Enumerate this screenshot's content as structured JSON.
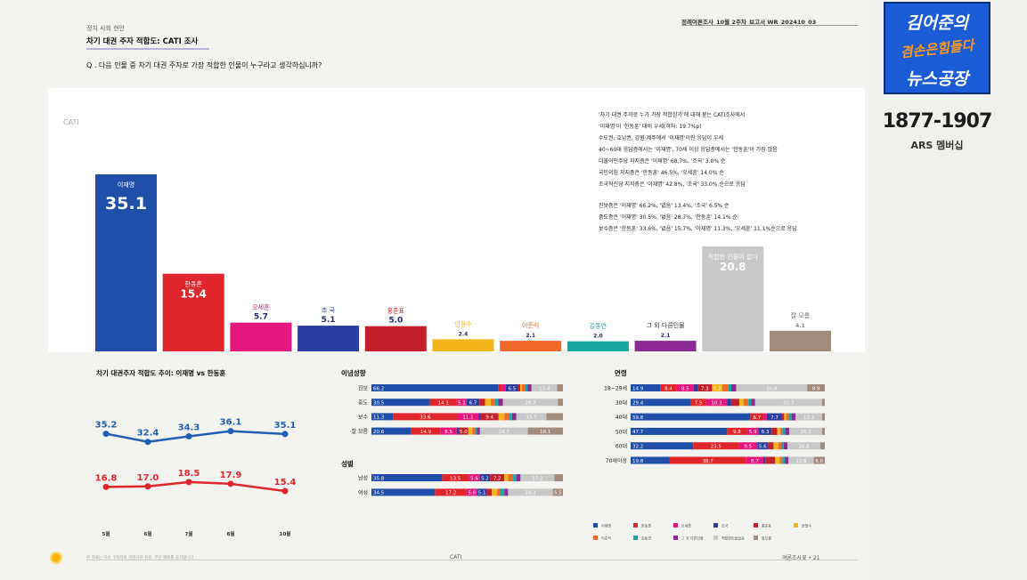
{
  "header": {
    "category": "정치 사회 현안",
    "title": "차기 대권 주자 적합도: CATI 조사",
    "report": "정례여론조사_10월 2주차_보고서   WR_202410_03",
    "question": "Q . 다음 인물 중 차기 대권 주자로 가장 적합한 인물이 누구라고 생각하십니까?"
  },
  "main_chart_tag": "CATI",
  "description": [
    "'차기 대권 주자로 누가 가장 적합한가'에 대해 묻는 CATI조사에서",
    "'이재명'이 '한동훈' 대비 우세(격차: 19.7%p)",
    "수도권, 호남권, 강원·제주에서 '이재명'이란 응답이 우세",
    "40~60대 응답층에서는 '이재명', 70세 이상 응답층에서는 '한동훈'이 가장 많음",
    "더불어민주당 지지층은 '이재명' 68.7%, '조국' 3.0% 순",
    "국민의힘 지지층은 '한동훈' 46.5%, '오세훈' 14.0% 순",
    "조국혁신당 지지층은 '이재명' 42.8%, '조국' 33.0% 순으로 응답",
    "",
    "진보층은 '이재명' 66.2%, '없음' 13.4%, '조국' 6.5% 순",
    "중도층은 '이재명' 30.5%, '없음' 28.7%, '한동훈' 14.1% 순",
    "보수층은 '한동훈' 33.6%, '없음' 15.7%, '이재명' 11.3%, '오세훈' 11.1%순으로 응답"
  ],
  "chart_data": [
    {
      "type": "bar",
      "categories": [
        "이재명",
        "한동훈",
        "오세훈",
        "조 국",
        "홍준표",
        "안철수",
        "이준석",
        "김동연",
        "그 외 다른인물",
        "적합한 인물이 없다",
        "잘 모름"
      ],
      "values": [
        35.1,
        15.4,
        5.7,
        5.1,
        5.0,
        2.4,
        2.1,
        2.0,
        2.1,
        20.8,
        4.1
      ],
      "colors": [
        "#1f4fa8",
        "#e0262b",
        "#e5177f",
        "#2c3da0",
        "#c4202b",
        "#f3b51b",
        "#f26a2a",
        "#17a6a0",
        "#8b2a91",
        "#c8c8c8",
        "#a28b7b"
      ],
      "ylim": [
        0,
        40
      ]
    },
    {
      "type": "line",
      "title": "차기 대권주자 적합도 추이: 이재명 vs 한동훈",
      "categories": [
        "5월",
        "6월",
        "7월",
        "8월",
        "10월"
      ],
      "series": [
        {
          "name": "이재명",
          "values": [
            35.2,
            32.4,
            34.3,
            36.1,
            35.1
          ],
          "color": "#1f5fb5"
        },
        {
          "name": "한동훈",
          "values": [
            16.8,
            17.0,
            18.5,
            17.9,
            15.4
          ],
          "color": "#e0262b"
        }
      ],
      "ylim": [
        0,
        45
      ]
    },
    {
      "type": "stacked-bar",
      "title": "이념성향",
      "rows": [
        {
          "label": "진보",
          "values": [
            66.2,
            2.0,
            2.0,
            6.5,
            1.0,
            0.8,
            1.6,
            1.5,
            2.0,
            13.4,
            3.0
          ],
          "labels": [
            "66.2",
            "",
            "",
            "6.5",
            "",
            "",
            "",
            "",
            "",
            "13.4",
            ""
          ]
        },
        {
          "label": "중도",
          "values": [
            30.5,
            14.1,
            5.1,
            6.7,
            2.9,
            3.0,
            2.0,
            2.0,
            2.4,
            28.7,
            2.6
          ],
          "labels": [
            "30.5",
            "14.1",
            "5.1",
            "6.7",
            "",
            "",
            "",
            "",
            "",
            "28.7",
            ""
          ]
        },
        {
          "label": "보수",
          "values": [
            11.3,
            33.6,
            11.1,
            1.0,
            9.4,
            3.0,
            2.5,
            1.5,
            2.3,
            15.7,
            8.6
          ],
          "labels": [
            "11.3",
            "33.6",
            "11.1",
            "",
            "9.4",
            "",
            "",
            "",
            "",
            "15.7",
            ""
          ]
        },
        {
          "label": "잘 모름",
          "values": [
            20.6,
            14.9,
            8.5,
            1.0,
            5.0,
            2.0,
            1.5,
            1.0,
            1.5,
            24.7,
            18.1
          ],
          "labels": [
            "20.6",
            "14.9",
            "8.5",
            "",
            "5.0",
            "",
            "",
            "",
            "",
            "24.7",
            "18.1"
          ]
        }
      ]
    },
    {
      "type": "stacked-bar",
      "title": "성별",
      "rows": [
        {
          "label": "남성",
          "values": [
            35.8,
            13.5,
            5.6,
            5.2,
            7.2,
            2.0,
            2.5,
            1.7,
            2.0,
            17.2,
            4.3
          ],
          "labels": [
            "35.8",
            "13.5",
            "5.6",
            "5.2",
            "7.2",
            "",
            "",
            "",
            "",
            "17.2",
            ""
          ]
        },
        {
          "label": "여성",
          "values": [
            34.5,
            17.2,
            5.8,
            5.1,
            2.8,
            2.8,
            1.7,
            2.3,
            2.0,
            24.3,
            5.5
          ],
          "labels": [
            "34.5",
            "17.2",
            "5.8",
            "5.1",
            "",
            "",
            "",
            "",
            "",
            "24.3",
            "5.5"
          ]
        }
      ]
    },
    {
      "type": "stacked-bar",
      "title": "연령",
      "rows": [
        {
          "label": "18~29세",
          "values": [
            14.9,
            8.4,
            8.5,
            2.0,
            7.3,
            5.2,
            3.0,
            1.5,
            2.5,
            35.8,
            8.9
          ],
          "labels": [
            "14.9",
            "8.4",
            "8.5",
            "",
            "7.3",
            "5.2",
            "",
            "",
            "",
            "35.8",
            "8.9"
          ]
        },
        {
          "label": "30대",
          "values": [
            29.4,
            7.5,
            10.3,
            2.0,
            4.0,
            2.0,
            2.4,
            1.3,
            2.0,
            32.7,
            1.4
          ],
          "labels": [
            "29.4",
            "7.5",
            "10.3",
            "",
            "",
            "",
            "",
            "",
            "",
            "32.7",
            ""
          ]
        },
        {
          "label": "40대",
          "values": [
            59.8,
            6.7,
            1.5,
            7.7,
            1.0,
            1.0,
            1.5,
            1.2,
            2.0,
            13.3,
            1.3
          ],
          "labels": [
            "59.8",
            "6.7",
            "",
            "7.7",
            "",
            "",
            "",
            "",
            "",
            "13.3",
            ""
          ]
        },
        {
          "label": "50대",
          "values": [
            47.7,
            9.8,
            5.9,
            6.3,
            2.8,
            1.5,
            1.0,
            1.5,
            2.0,
            16.2,
            1.3
          ],
          "labels": [
            "47.7",
            "9.8",
            "5.9",
            "6.3",
            "",
            "",
            "",
            "",
            "",
            "16.2",
            ""
          ]
        },
        {
          "label": "60대",
          "values": [
            32.2,
            23.5,
            9.5,
            5.6,
            2.8,
            2.4,
            1.5,
            1.3,
            2.0,
            16.8,
            2.4
          ],
          "labels": [
            "32.2",
            "23.5",
            "9.5",
            "5.6",
            "",
            "",
            "",
            "",
            "",
            "16.8",
            ""
          ]
        },
        {
          "label": "70세이상",
          "values": [
            19.8,
            38.7,
            8.7,
            1.0,
            5.0,
            2.3,
            1.3,
            1.3,
            1.8,
            12.8,
            5.6
          ],
          "labels": [
            "19.8",
            "38.7",
            "8.7",
            "",
            "",
            "",
            "",
            "",
            "",
            "12.8",
            "5.6"
          ]
        }
      ]
    }
  ],
  "legend": [
    "이재명",
    "한동훈",
    "오세훈",
    "조국",
    "홍준표",
    "안철수",
    "이준석",
    "김동연",
    "그 외 다른인물",
    "적합한인물없음",
    "잘모름"
  ],
  "footer": {
    "left": "본 자료는 이슈 구독자와 관련기관 전용. 무단 배포를 금지합니다",
    "mid": "CATI",
    "right": "여론조사꽃 • 21"
  },
  "overlay": {
    "line1": "김어준의",
    "line2": "겸손은힘들다",
    "line3": "뉴스공장",
    "phone": "1877-1907",
    "ars": "ARS 멤버십"
  }
}
